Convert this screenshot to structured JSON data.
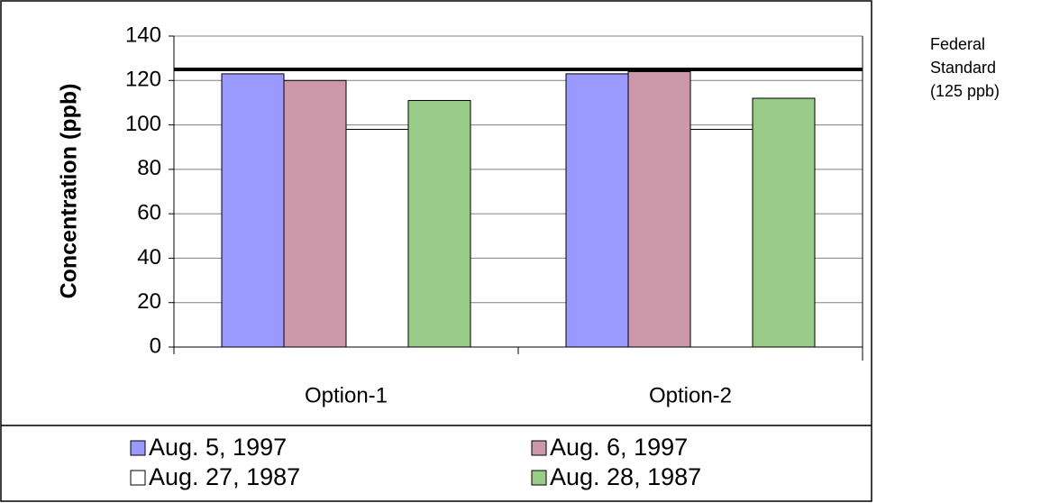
{
  "chart_data": {
    "type": "bar",
    "ylabel": "Concentration (ppb)",
    "categories": [
      "Option-1",
      "Option-2"
    ],
    "series": [
      {
        "name": "Aug. 5, 1997",
        "color": "#9999ff",
        "values": [
          123,
          123
        ]
      },
      {
        "name": "Aug. 6, 1997",
        "color": "#cc99aa",
        "values": [
          120,
          124
        ]
      },
      {
        "name": "Aug. 27, 1987",
        "color": "#ffffff",
        "values": [
          98,
          98
        ]
      },
      {
        "name": "Aug. 28, 1987",
        "color": "#99cc88",
        "values": [
          111,
          112
        ]
      }
    ],
    "reference_line": 125,
    "annotation": [
      "Federal",
      "Standard",
      "(125 ppb)"
    ],
    "ylim": [
      0,
      140
    ],
    "yticks": [
      0,
      20,
      40,
      60,
      80,
      100,
      120,
      140
    ],
    "grid": true,
    "legend": "bottom"
  }
}
